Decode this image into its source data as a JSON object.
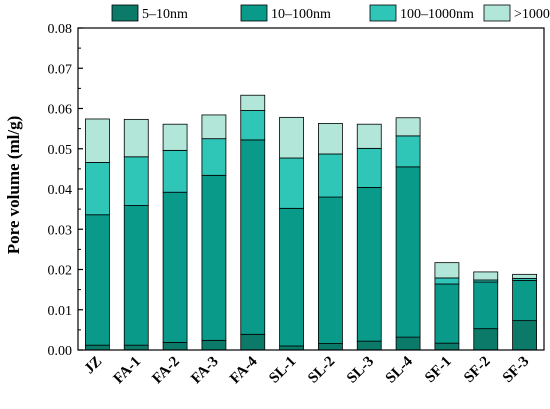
{
  "chart_data": {
    "type": "bar",
    "stacked": true,
    "ylabel": "Pore volume (ml/g)",
    "xlabel": "",
    "ylim": [
      0,
      0.08
    ],
    "yticks": [
      0.0,
      0.01,
      0.02,
      0.03,
      0.04,
      0.05,
      0.06,
      0.07,
      0.08
    ],
    "ytick_labels": [
      "0.00",
      "0.01",
      "0.02",
      "0.03",
      "0.04",
      "0.05",
      "0.06",
      "0.07",
      "0.08"
    ],
    "grid": false,
    "legend_position": "top",
    "categories": [
      "JZ",
      "FA-1",
      "FA-2",
      "FA-3",
      "FA-4",
      "SL-1",
      "SL-2",
      "SL-3",
      "SL-4",
      "SF-1",
      "SF-2",
      "SF-3"
    ],
    "series": [
      {
        "name": "5–10nm",
        "color": "#0b7a68",
        "values": [
          0.0012,
          0.0012,
          0.0019,
          0.0024,
          0.0039,
          0.001,
          0.0016,
          0.0022,
          0.0032,
          0.0017,
          0.0053,
          0.0073
        ]
      },
      {
        "name": "10–100nm",
        "color": "#0a9a8a",
        "values": [
          0.0324,
          0.0347,
          0.0373,
          0.041,
          0.0483,
          0.0342,
          0.0364,
          0.0382,
          0.0423,
          0.0147,
          0.0116,
          0.01
        ]
      },
      {
        "name": "100–1000nm",
        "color": "#2fc6b8",
        "values": [
          0.013,
          0.0121,
          0.0104,
          0.0091,
          0.0073,
          0.0125,
          0.0107,
          0.0097,
          0.0077,
          0.0015,
          0.0005,
          0.0005
        ]
      },
      {
        "name": ">1000nm",
        "color": "#b2e6d8",
        "values": [
          0.0108,
          0.0093,
          0.0065,
          0.0059,
          0.0038,
          0.0101,
          0.0076,
          0.006,
          0.0045,
          0.0038,
          0.002,
          0.001
        ]
      }
    ]
  }
}
